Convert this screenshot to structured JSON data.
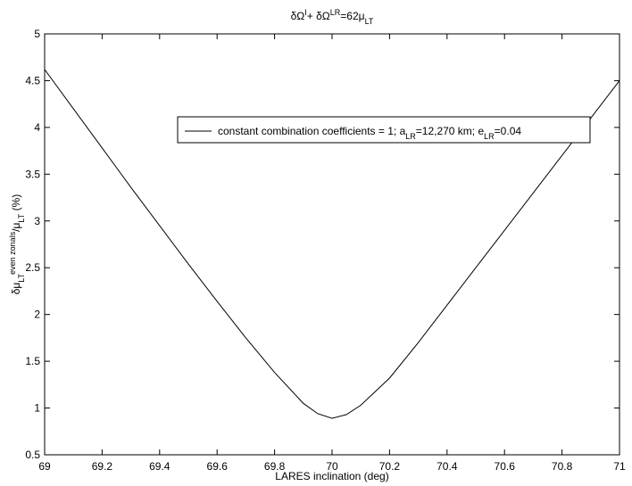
{
  "chart_data": {
    "type": "line",
    "title": [
      {
        "text": "δΩ"
      },
      {
        "text": "I",
        "shift": "super"
      },
      {
        "text": "+ δΩ"
      },
      {
        "text": "LR",
        "shift": "super"
      },
      {
        "text": "=62μ"
      },
      {
        "text": "LT",
        "shift": "sub"
      }
    ],
    "xlabel": "LARES inclination (deg)",
    "ylabel": [
      {
        "text": "δμ"
      },
      {
        "text": "LT",
        "shift": "sub"
      },
      {
        "text": "even zonals",
        "shift": "super"
      },
      {
        "text": "/μ"
      },
      {
        "text": "LT",
        "shift": "sub"
      },
      {
        "text": " (%)"
      }
    ],
    "x": [
      69.0,
      69.1,
      69.2,
      69.3,
      69.4,
      69.5,
      69.6,
      69.7,
      69.8,
      69.9,
      69.95,
      70.0,
      70.05,
      70.1,
      70.2,
      70.3,
      70.4,
      70.5,
      70.6,
      70.7,
      70.8,
      70.9,
      71.0
    ],
    "series": [
      {
        "name": [
          {
            "text": "constant combination coefficients = 1; a"
          },
          {
            "text": "LR",
            "shift": "sub"
          },
          {
            "text": "=12,270 km; e"
          },
          {
            "text": "LR",
            "shift": "sub"
          },
          {
            "text": "=0.04"
          }
        ],
        "color": "#000000",
        "values": [
          4.62,
          4.2,
          3.78,
          3.36,
          2.95,
          2.54,
          2.14,
          1.75,
          1.38,
          1.05,
          0.94,
          0.89,
          0.93,
          1.03,
          1.32,
          1.7,
          2.1,
          2.5,
          2.9,
          3.3,
          3.7,
          4.1,
          4.5
        ]
      }
    ],
    "xlim": [
      69,
      71
    ],
    "xticks": [
      69,
      69.2,
      69.4,
      69.6,
      69.8,
      70,
      70.2,
      70.4,
      70.6,
      70.8,
      71
    ],
    "ylim": [
      0.5,
      5
    ],
    "yticks": [
      0.5,
      1,
      1.5,
      2,
      2.5,
      3,
      3.5,
      4,
      4.5,
      5
    ],
    "grid": false
  }
}
